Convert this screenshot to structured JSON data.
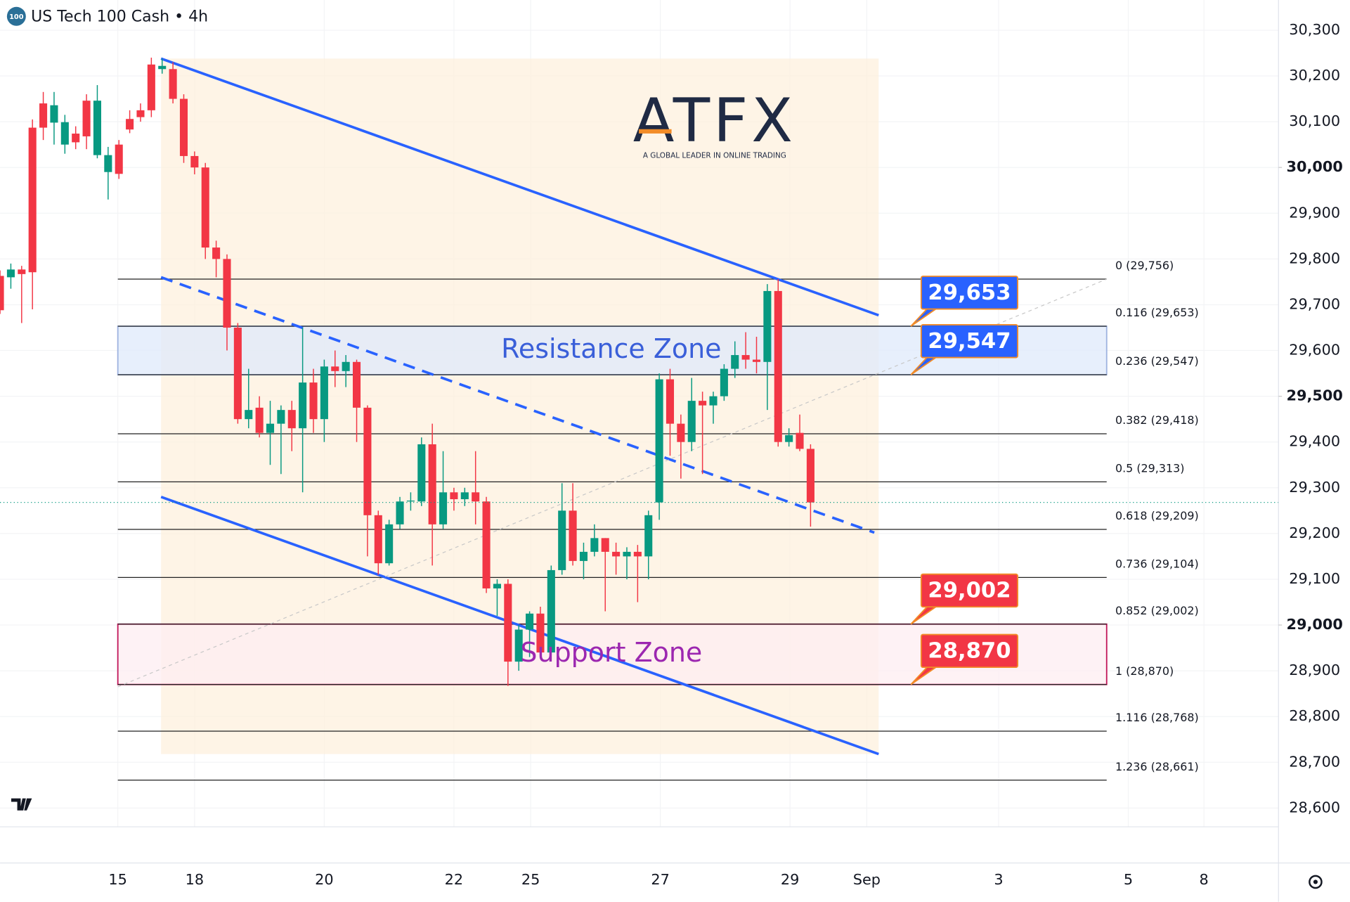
{
  "chart_data": {
    "type": "candlestick",
    "title": "US Tech 100 Cash • 4h",
    "symbol_badge": "100",
    "logo": {
      "name": "ATFX",
      "tagline": "A GLOBAL LEADER IN ONLINE TRADING"
    },
    "up_color": "#089981",
    "down_color": "#f23645",
    "xlim": [
      0,
      118.3
    ],
    "xticks": [
      {
        "value": 10.9,
        "label": "15"
      },
      {
        "value": 18.0,
        "label": "18"
      },
      {
        "value": 30.0,
        "label": "20"
      },
      {
        "value": 42.0,
        "label": "22"
      },
      {
        "value": 49.1,
        "label": "25"
      },
      {
        "value": 61.1,
        "label": "27"
      },
      {
        "value": 73.1,
        "label": "29"
      },
      {
        "value": 80.2,
        "label": "Sep"
      },
      {
        "value": 92.4,
        "label": "3"
      },
      {
        "value": 104.4,
        "label": "5"
      },
      {
        "value": 111.4,
        "label": "8"
      }
    ],
    "ylim": [
      28559,
      30366
    ],
    "yticks": [
      {
        "value": 30300,
        "label": "30,300"
      },
      {
        "value": 30200,
        "label": "30,200"
      },
      {
        "value": 30100,
        "label": "30,100"
      },
      {
        "value": 30000,
        "label": "30,000"
      },
      {
        "value": 29900,
        "label": "29,900"
      },
      {
        "value": 29800,
        "label": "29,800"
      },
      {
        "value": 29700,
        "label": "29,700"
      },
      {
        "value": 29600,
        "label": "29,600"
      },
      {
        "value": 29500,
        "label": "29,500"
      },
      {
        "value": 29400,
        "label": "29,400"
      },
      {
        "value": 29300,
        "label": "29,300"
      },
      {
        "value": 29200,
        "label": "29,200"
      },
      {
        "value": 29100,
        "label": "29,100"
      },
      {
        "value": 29000,
        "label": "29,000"
      },
      {
        "value": 28900,
        "label": "28,900"
      },
      {
        "value": 28800,
        "label": "28,800"
      },
      {
        "value": 28700,
        "label": "28,700"
      },
      {
        "value": 28600,
        "label": "28,600"
      }
    ],
    "bold_yticks": [
      30000,
      29500,
      29000
    ],
    "grid": true,
    "x": [
      0,
      1,
      2,
      3,
      4,
      5,
      6,
      7,
      8,
      9,
      10,
      11,
      12,
      13,
      14,
      15,
      16,
      17,
      18,
      19,
      20,
      21,
      22,
      23,
      24,
      25,
      26,
      27,
      28,
      29,
      30,
      31,
      32,
      33,
      34,
      35,
      36,
      37,
      38,
      39,
      40,
      41,
      42,
      43,
      44,
      45,
      46,
      47,
      48,
      49,
      50,
      51,
      52,
      53,
      54,
      55,
      56,
      57,
      58,
      59,
      60,
      61,
      62,
      63,
      64,
      65,
      66,
      67,
      68,
      69,
      70,
      71,
      72,
      73,
      74,
      75
    ],
    "open": [
      29763,
      29760,
      29777,
      30087,
      30140,
      30098,
      30050,
      30074,
      30146,
      30027,
      29990,
      30050,
      30106,
      30125,
      30225,
      30215,
      30215,
      30150,
      30025,
      30000,
      29825,
      29800,
      29650,
      29450,
      29475,
      29420,
      29440,
      29470,
      29430,
      29530,
      29450,
      29565,
      29555,
      29575,
      29475,
      29240,
      29135,
      29220,
      29270,
      29270,
      29395,
      29220,
      29290,
      29275,
      29290,
      29270,
      29080,
      29090,
      28920,
      28990,
      29025,
      28940,
      29120,
      29250,
      29140,
      29160,
      29190,
      29160,
      29150,
      29160,
      29150,
      29268,
      29537,
      29440,
      29400,
      29490,
      29480,
      29500,
      29560,
      29590,
      29580,
      29575,
      29730,
      29400,
      29420,
      29385
    ],
    "high": [
      29775,
      29790,
      29785,
      30105,
      30165,
      30165,
      30115,
      30090,
      30160,
      30180,
      30045,
      30060,
      30125,
      30140,
      30240,
      30238,
      30230,
      30160,
      30035,
      30010,
      29840,
      29810,
      29660,
      29560,
      29500,
      29490,
      29480,
      29490,
      29650,
      29560,
      29580,
      29600,
      29590,
      29580,
      29480,
      29250,
      29230,
      29280,
      29290,
      29410,
      29440,
      29380,
      29300,
      29300,
      29380,
      29280,
      29100,
      29100,
      29000,
      29030,
      29040,
      29130,
      29310,
      29310,
      29180,
      29220,
      29190,
      29180,
      29170,
      29175,
      29250,
      29550,
      29560,
      29460,
      29540,
      29510,
      29510,
      29570,
      29620,
      29640,
      29630,
      29745,
      29756,
      29430,
      29460,
      29395
    ],
    "low": [
      29680,
      29735,
      29660,
      29690,
      30060,
      30050,
      30030,
      30040,
      30040,
      30020,
      29930,
      29975,
      30075,
      30100,
      30110,
      30205,
      30140,
      30010,
      29985,
      29800,
      29760,
      29600,
      29440,
      29430,
      29410,
      29350,
      29330,
      29380,
      29290,
      29420,
      29400,
      29520,
      29520,
      29400,
      29150,
      29110,
      29130,
      29210,
      29250,
      29260,
      29130,
      29210,
      29250,
      29260,
      29220,
      29070,
      29020,
      28867,
      28900,
      28930,
      28930,
      28935,
      29110,
      29130,
      29100,
      29150,
      29030,
      29110,
      29100,
      29050,
      29100,
      29230,
      29370,
      29320,
      29380,
      29330,
      29440,
      29490,
      29540,
      29560,
      29550,
      29470,
      29390,
      29390,
      29380,
      29215
    ],
    "close": [
      29688,
      29777,
      29767,
      29771,
      30087,
      30136,
      30099,
      30055,
      30068,
      30146,
      30027,
      29986,
      30083,
      30110,
      30125,
      30222,
      30150,
      30025,
      30000,
      29825,
      29800,
      29650,
      29450,
      29470,
      29420,
      29440,
      29470,
      29430,
      29530,
      29450,
      29565,
      29555,
      29575,
      29475,
      29240,
      29135,
      29220,
      29270,
      29272,
      29395,
      29220,
      29290,
      29275,
      29290,
      29270,
      29080,
      29090,
      28920,
      28990,
      29025,
      28940,
      29120,
      29250,
      29140,
      29160,
      29190,
      29160,
      29150,
      29160,
      29150,
      29240,
      29537,
      29440,
      29400,
      29490,
      29480,
      29500,
      29560,
      29590,
      29580,
      29575,
      29730,
      29400,
      29415,
      29385,
      29268
    ],
    "fib_levels": [
      {
        "value": 29756,
        "label": "0 (29,756)"
      },
      {
        "value": 29653,
        "label": "0.116 (29,653)"
      },
      {
        "value": 29547,
        "label": "0.236 (29,547)"
      },
      {
        "value": 29418,
        "label": "0.382 (29,418)"
      },
      {
        "value": 29313,
        "label": "0.5 (29,313)"
      },
      {
        "value": 29209,
        "label": "0.618 (29,209)"
      },
      {
        "value": 29104,
        "label": "0.736 (29,104)"
      },
      {
        "value": 29002,
        "label": "0.852 (29,002)"
      },
      {
        "value": 28870,
        "label": "1 (28,870)"
      },
      {
        "value": 28768,
        "label": "1.116 (28,768)"
      },
      {
        "value": 28661,
        "label": "1.236 (28,661)"
      }
    ],
    "fib_x": [
      10.9,
      102.4
    ],
    "zones": [
      {
        "name": "Resistance Zone",
        "low": 29547,
        "high": 29653,
        "color": "#3a5fd9",
        "fill": "#dfe9fb",
        "stroke": "#9fb4e0"
      },
      {
        "name": "Support Zone",
        "low": 28870,
        "high": 29002,
        "color": "#9c27b0",
        "fill": "#fdeef1",
        "stroke": "#c2185b"
      }
    ],
    "price_labels": [
      {
        "value": 29653,
        "label": "29,653",
        "color": "#2962ff"
      },
      {
        "value": 29547,
        "label": "29,547",
        "color": "#2962ff"
      },
      {
        "value": 29002,
        "label": "29,002",
        "color": "#f23645"
      },
      {
        "value": 28870,
        "label": "28,870",
        "color": "#f23645"
      }
    ],
    "lines": [
      {
        "x": [
          14.9,
          81.3
        ],
        "y": [
          30238,
          29677
        ],
        "color": "#2962ff",
        "dashed": false
      },
      {
        "x": [
          14.9,
          81.3
        ],
        "y": [
          29280,
          28718
        ],
        "color": "#2962ff",
        "dashed": false
      },
      {
        "x": [
          14.9,
          80.9
        ],
        "y": [
          29760,
          29202
        ],
        "color": "#2962ff",
        "dashed": true
      },
      {
        "x": [
          10.9,
          102.4
        ],
        "y": [
          28865,
          29756
        ],
        "color": "#c8c8c8",
        "dashed": true
      }
    ]
  }
}
